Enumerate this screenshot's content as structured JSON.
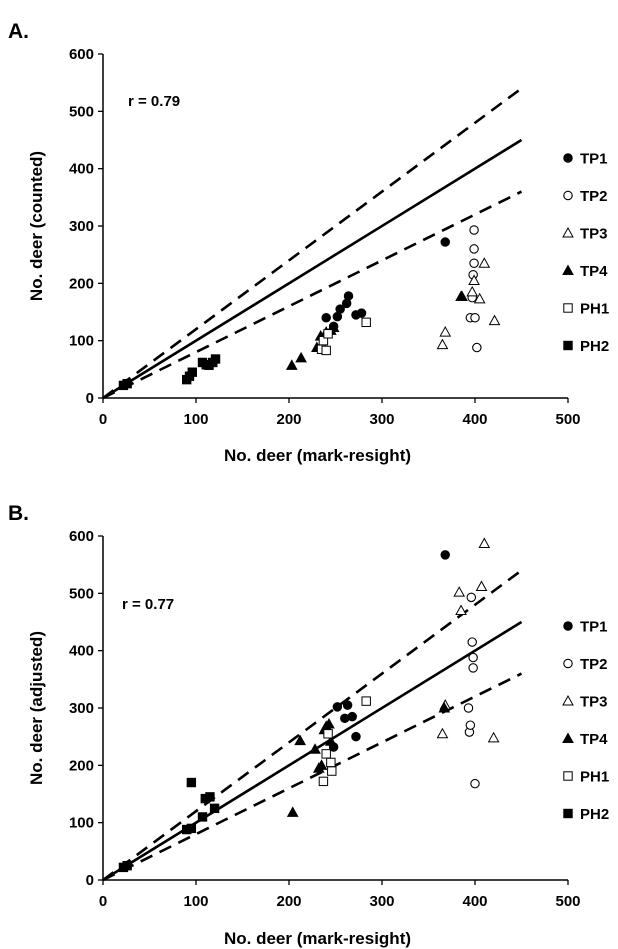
{
  "chart_data": [
    {
      "panel_label": "A.",
      "type": "scatter",
      "xlabel": "No. deer (mark-resight)",
      "ylabel": "No. deer (counted)",
      "xlim": [
        0,
        500
      ],
      "ylim": [
        0,
        600
      ],
      "xticks": [
        "0",
        "100",
        "200",
        "300",
        "400",
        "500"
      ],
      "yticks": [
        "0",
        "100",
        "200",
        "300",
        "400",
        "500",
        "600"
      ],
      "annotation": "r = 0.79",
      "grid": false,
      "legend_position": "right",
      "reference_lines": [
        {
          "style": "solid",
          "x": [
            0,
            450
          ],
          "y": [
            0,
            450
          ]
        },
        {
          "style": "dashed",
          "x": [
            0,
            450
          ],
          "y": [
            0,
            540
          ]
        },
        {
          "style": "dashed",
          "x": [
            0,
            450
          ],
          "y": [
            0,
            360
          ]
        }
      ],
      "series": [
        {
          "name": "TP1",
          "marker": "circle-filled",
          "points": [
            [
              240,
              140
            ],
            [
              248,
              125
            ],
            [
              252,
              142
            ],
            [
              255,
              155
            ],
            [
              262,
              165
            ],
            [
              264,
              178
            ],
            [
              272,
              145
            ],
            [
              278,
              148
            ],
            [
              368,
              272
            ]
          ]
        },
        {
          "name": "TP2",
          "marker": "circle-open",
          "points": [
            [
              395,
              140
            ],
            [
              397,
              175
            ],
            [
              398,
              215
            ],
            [
              399,
              235
            ],
            [
              399,
              260
            ],
            [
              399,
              293
            ],
            [
              400,
              140
            ],
            [
              402,
              88
            ]
          ]
        },
        {
          "name": "TP3",
          "marker": "triangle-open",
          "points": [
            [
              365,
              93
            ],
            [
              368,
              115
            ],
            [
              385,
              177
            ],
            [
              397,
              185
            ],
            [
              399,
              205
            ],
            [
              405,
              173
            ],
            [
              410,
              235
            ],
            [
              421,
              135
            ]
          ]
        },
        {
          "name": "TP4",
          "marker": "triangle-filled",
          "points": [
            [
              203,
              57
            ],
            [
              213,
              70
            ],
            [
              230,
              88
            ],
            [
              234,
              108
            ],
            [
              240,
              115
            ],
            [
              245,
              118
            ],
            [
              248,
              123
            ],
            [
              386,
              177
            ]
          ]
        },
        {
          "name": "PH1",
          "marker": "square-open",
          "points": [
            [
              235,
              85
            ],
            [
              237,
              100
            ],
            [
              240,
              83
            ],
            [
              242,
              112
            ],
            [
              283,
              132
            ]
          ]
        },
        {
          "name": "PH2",
          "marker": "square-filled",
          "points": [
            [
              22,
              22
            ],
            [
              26,
              25
            ],
            [
              90,
              32
            ],
            [
              93,
              38
            ],
            [
              96,
              45
            ],
            [
              107,
              62
            ],
            [
              111,
              58
            ],
            [
              114,
              57
            ],
            [
              118,
              62
            ],
            [
              121,
              68
            ]
          ]
        }
      ]
    },
    {
      "panel_label": "B.",
      "type": "scatter",
      "xlabel": "No. deer (mark-resight)",
      "ylabel": "No. deer (adjusted)",
      "xlim": [
        0,
        500
      ],
      "ylim": [
        0,
        600
      ],
      "xticks": [
        "0",
        "100",
        "200",
        "300",
        "400",
        "500"
      ],
      "yticks": [
        "0",
        "100",
        "200",
        "300",
        "400",
        "500",
        "600"
      ],
      "annotation": "r = 0.77",
      "grid": false,
      "legend_position": "right",
      "reference_lines": [
        {
          "style": "solid",
          "x": [
            0,
            450
          ],
          "y": [
            0,
            450
          ]
        },
        {
          "style": "dashed",
          "x": [
            0,
            450
          ],
          "y": [
            0,
            540
          ]
        },
        {
          "style": "dashed",
          "x": [
            0,
            450
          ],
          "y": [
            0,
            360
          ]
        }
      ],
      "series": [
        {
          "name": "TP1",
          "marker": "circle-filled",
          "points": [
            [
              248,
              232
            ],
            [
              252,
              302
            ],
            [
              260,
              282
            ],
            [
              263,
              305
            ],
            [
              268,
              285
            ],
            [
              272,
              250
            ],
            [
              368,
              567
            ]
          ]
        },
        {
          "name": "TP2",
          "marker": "circle-open",
          "points": [
            [
              393,
              300
            ],
            [
              394,
              258
            ],
            [
              395,
              270
            ],
            [
              396,
              493
            ],
            [
              397,
              415
            ],
            [
              398,
              388
            ],
            [
              398,
              370
            ],
            [
              400,
              168
            ]
          ]
        },
        {
          "name": "TP3",
          "marker": "triangle-open",
          "points": [
            [
              365,
              255
            ],
            [
              368,
              305
            ],
            [
              383,
              502
            ],
            [
              385,
              470
            ],
            [
              407,
              512
            ],
            [
              410,
              587
            ],
            [
              420,
              248
            ]
          ]
        },
        {
          "name": "TP4",
          "marker": "triangle-filled",
          "points": [
            [
              204,
              118
            ],
            [
              212,
              243
            ],
            [
              228,
              228
            ],
            [
              232,
              195
            ],
            [
              235,
              200
            ],
            [
              238,
              262
            ],
            [
              240,
              268
            ],
            [
              243,
              272
            ],
            [
              245,
              242
            ],
            [
              367,
              300
            ]
          ]
        },
        {
          "name": "PH1",
          "marker": "square-open",
          "points": [
            [
              237,
              172
            ],
            [
              240,
              220
            ],
            [
              242,
              255
            ],
            [
              245,
              205
            ],
            [
              246,
              190
            ],
            [
              283,
              312
            ]
          ]
        },
        {
          "name": "PH2",
          "marker": "square-filled",
          "points": [
            [
              22,
              22
            ],
            [
              26,
              25
            ],
            [
              90,
              88
            ],
            [
              95,
              90
            ],
            [
              95,
              170
            ],
            [
              107,
              110
            ],
            [
              110,
              142
            ],
            [
              115,
              145
            ],
            [
              120,
              125
            ]
          ]
        }
      ]
    }
  ]
}
